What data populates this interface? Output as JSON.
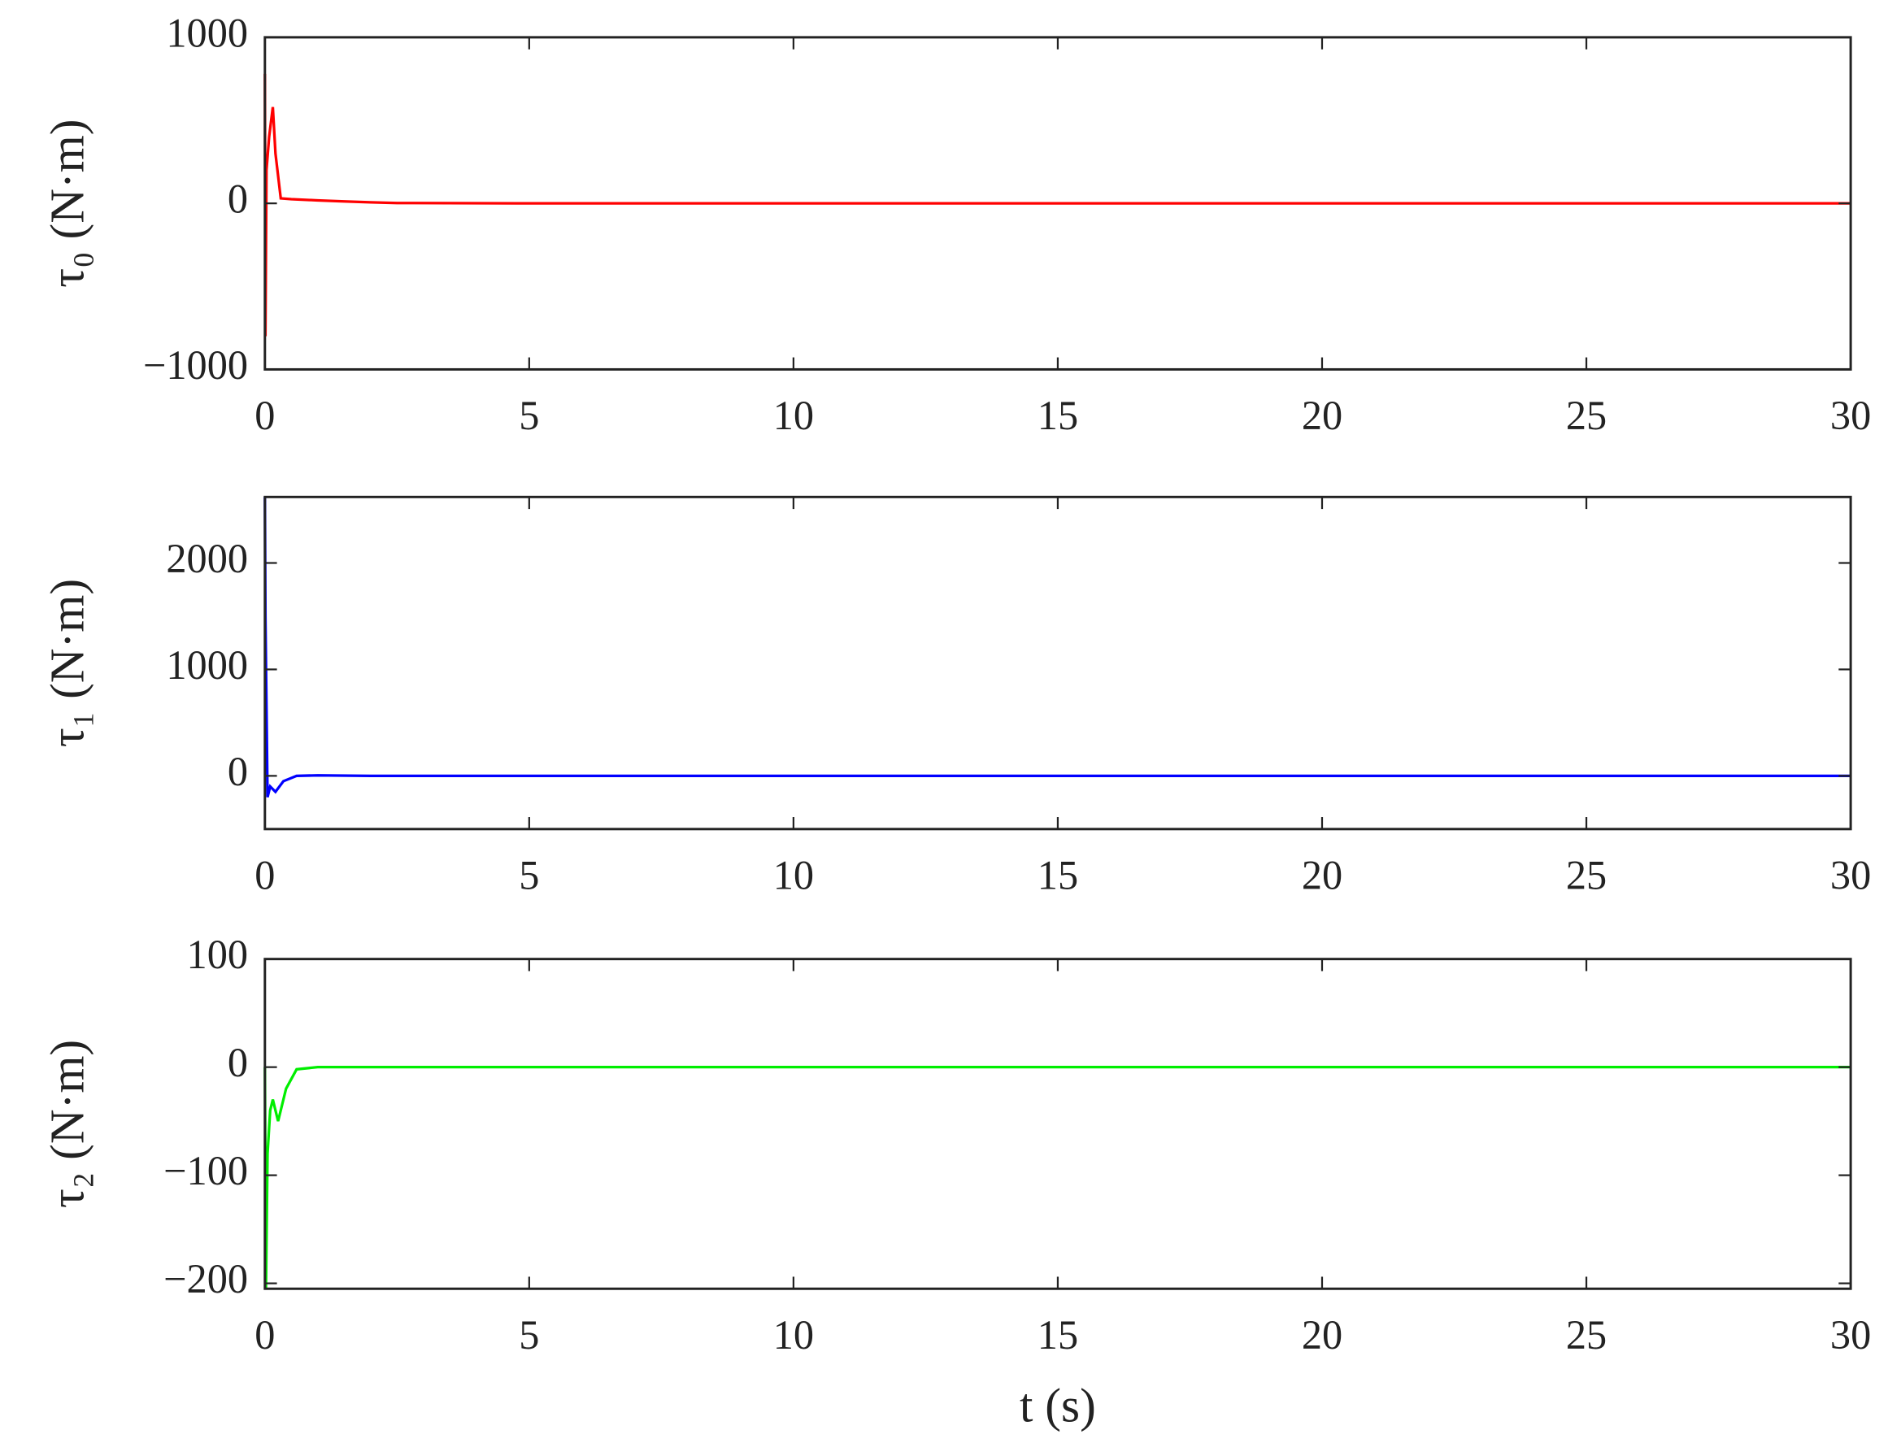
{
  "chart_data": [
    {
      "type": "line",
      "ylabel": "τ₀ (N·m)",
      "xlim": [
        0,
        30
      ],
      "xticks": [
        0,
        5,
        10,
        15,
        20,
        25,
        30
      ],
      "ylim": [
        -1000,
        1000
      ],
      "yticks": [
        {
          "value": -1000,
          "label": "−1000"
        },
        0,
        1000
      ],
      "series": [
        {
          "color": "#ff0000",
          "x": [
            0,
            0.01,
            0.03,
            0.08,
            0.15,
            0.2,
            0.3,
            0.5,
            1,
            1.5,
            2,
            2.5,
            5,
            10,
            15,
            20,
            25,
            30
          ],
          "values": [
            780,
            -800,
            200,
            400,
            580,
            300,
            30,
            25,
            18,
            12,
            6,
            2,
            0,
            0,
            0,
            0,
            0,
            0
          ]
        }
      ]
    },
    {
      "type": "line",
      "ylabel": "τ₁ (N·m)",
      "xlim": [
        0,
        30
      ],
      "xticks": [
        0,
        5,
        10,
        15,
        20,
        25,
        30
      ],
      "ylim": [
        -500,
        2620
      ],
      "yticks": [
        0,
        1000,
        2000
      ],
      "series": [
        {
          "color": "#0000ff",
          "x": [
            0,
            0.01,
            0.05,
            0.1,
            0.2,
            0.35,
            0.6,
            1,
            2,
            5,
            10,
            15,
            20,
            25,
            30
          ],
          "values": [
            2620,
            1500,
            -200,
            -100,
            -150,
            -50,
            0,
            5,
            0,
            0,
            0,
            0,
            0,
            0,
            0
          ]
        }
      ]
    },
    {
      "type": "line",
      "ylabel": "τ₂ (N·m)",
      "xlabel": "t (s)",
      "xlim": [
        0,
        30
      ],
      "xticks": [
        0,
        5,
        10,
        15,
        20,
        25,
        30
      ],
      "ylim": [
        -205,
        100
      ],
      "yticks": [
        {
          "value": -200,
          "label": "−200"
        },
        {
          "value": -100,
          "label": "−100"
        },
        0,
        100
      ],
      "series": [
        {
          "color": "#00ee00",
          "x": [
            0,
            0.02,
            0.05,
            0.1,
            0.15,
            0.25,
            0.4,
            0.6,
            1,
            2,
            5,
            10,
            15,
            20,
            25,
            30
          ],
          "values": [
            0,
            -205,
            -80,
            -40,
            -30,
            -50,
            -20,
            -2,
            0,
            0,
            0,
            0,
            0,
            0,
            0,
            0
          ]
        }
      ]
    }
  ]
}
